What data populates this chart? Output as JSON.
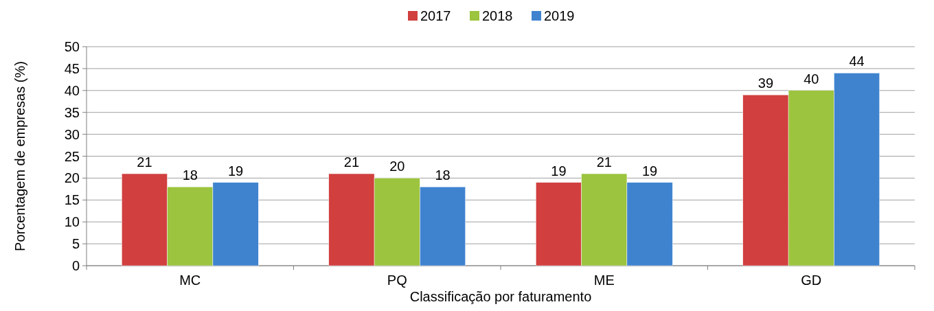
{
  "chart_data": {
    "type": "bar",
    "xlabel": "Classificação por faturamento",
    "ylabel": "Porcentagem de empresas (%)",
    "categories": [
      "MC",
      "PQ",
      "ME",
      "GD"
    ],
    "series": [
      {
        "name": "2017",
        "color": "#d13f3f",
        "values": [
          21,
          21,
          19,
          39
        ]
      },
      {
        "name": "2018",
        "color": "#9cc43e",
        "values": [
          18,
          20,
          21,
          40
        ]
      },
      {
        "name": "2019",
        "color": "#3f83cf",
        "values": [
          19,
          18,
          19,
          44
        ]
      }
    ],
    "ylim": [
      0,
      50
    ],
    "yticks": [
      0,
      5,
      10,
      15,
      20,
      25,
      30,
      35,
      40,
      45,
      50
    ],
    "grid": "y",
    "legend": "top",
    "data_labels": true
  }
}
